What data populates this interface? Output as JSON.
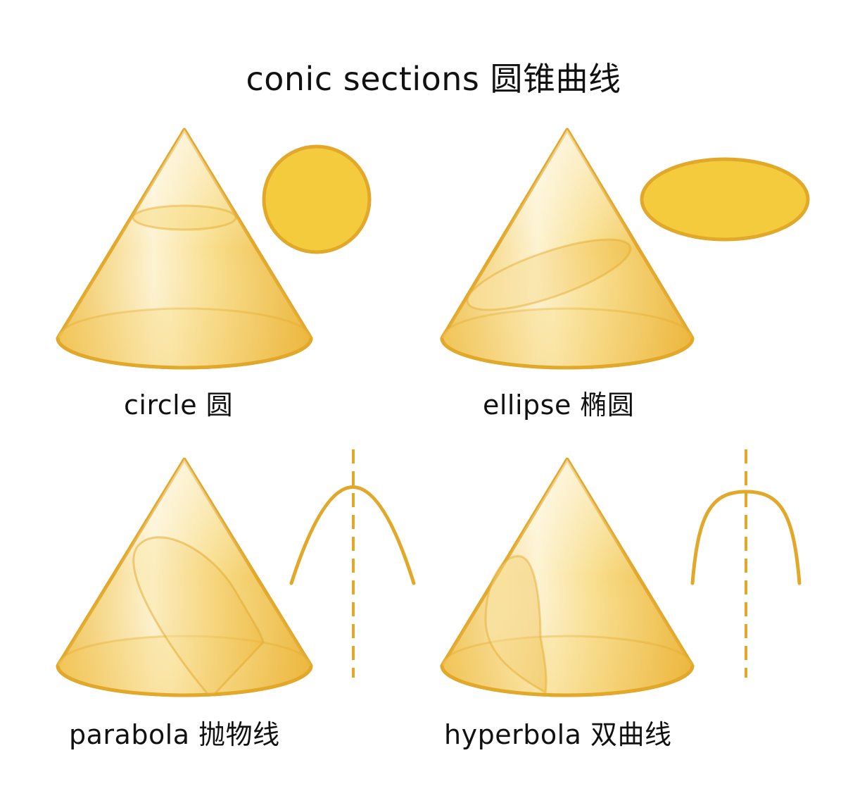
{
  "title": "conic sections  圆锥曲线",
  "panels": [
    {
      "id": "circle",
      "label": "circle  圆"
    },
    {
      "id": "ellipse",
      "label": "ellipse  椭圆"
    },
    {
      "id": "parabola",
      "label": "parabola  抛物线"
    },
    {
      "id": "hyperbola",
      "label": "hyperbola  双曲线"
    }
  ],
  "colors": {
    "stroke": "#E2A82A",
    "fill_light": "#FCEFC4",
    "fill_dark": "#F1C14A",
    "shape_fill": "#F4CB3C",
    "text": "#111111"
  }
}
